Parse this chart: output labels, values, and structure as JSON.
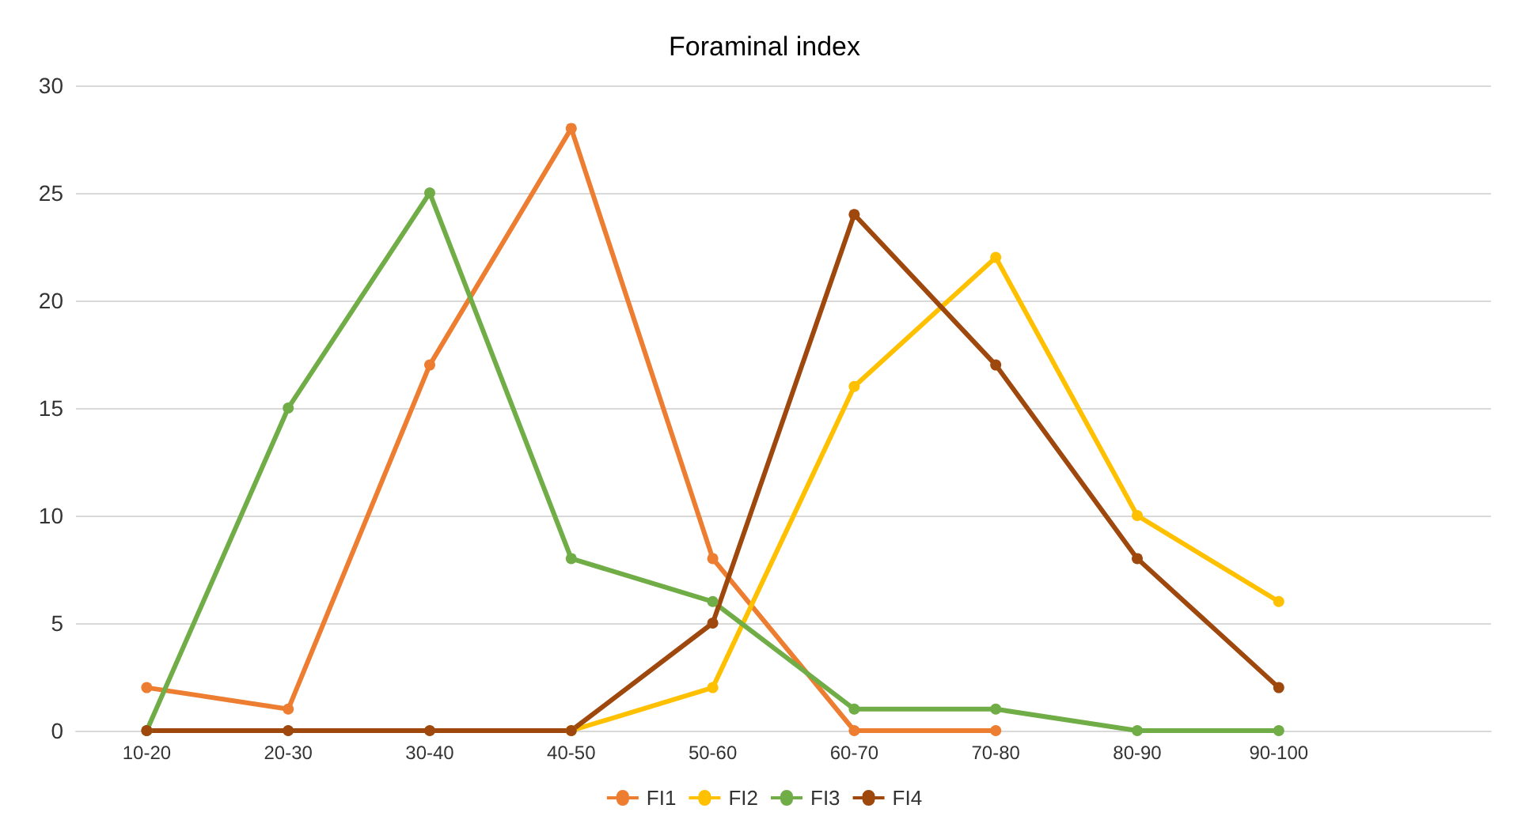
{
  "chart_data": {
    "type": "line",
    "title": "Foraminal index",
    "categories": [
      "10-20",
      "20-30",
      "30-40",
      "40-50",
      "50-60",
      "60-70",
      "70-80",
      "80-90",
      "90-100",
      null
    ],
    "series": [
      {
        "name": "FI1",
        "color": "#ed7d31",
        "values": [
          2,
          1,
          17,
          28,
          8,
          0,
          0,
          null,
          null,
          null
        ]
      },
      {
        "name": "FI2",
        "color": "#ffc000",
        "values": [
          null,
          null,
          null,
          0,
          2,
          16,
          22,
          10,
          6,
          null
        ]
      },
      {
        "name": "FI3",
        "color": "#70ad47",
        "values": [
          0,
          15,
          25,
          8,
          6,
          1,
          1,
          0,
          0,
          null
        ]
      },
      {
        "name": "FI4",
        "color": "#9e480e",
        "values": [
          0,
          0,
          0,
          0,
          5,
          24,
          17,
          8,
          2,
          null
        ]
      }
    ],
    "ylim": [
      0,
      30
    ],
    "yticks": [
      0,
      5,
      10,
      15,
      20,
      25,
      30
    ],
    "grid": "y",
    "legend": "bottom",
    "marker": "circle",
    "line_style": "solid"
  }
}
